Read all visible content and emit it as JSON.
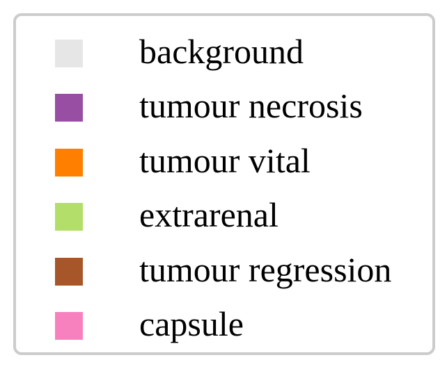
{
  "legend": {
    "items": [
      {
        "label": "background",
        "color": "#e6e6e6"
      },
      {
        "label": "tumour necrosis",
        "color": "#984ea3"
      },
      {
        "label": "tumour vital",
        "color": "#ff7f00"
      },
      {
        "label": "extrarenal",
        "color": "#b3de69"
      },
      {
        "label": "tumour regression",
        "color": "#a65628"
      },
      {
        "label": "capsule",
        "color": "#f781bf"
      }
    ]
  }
}
